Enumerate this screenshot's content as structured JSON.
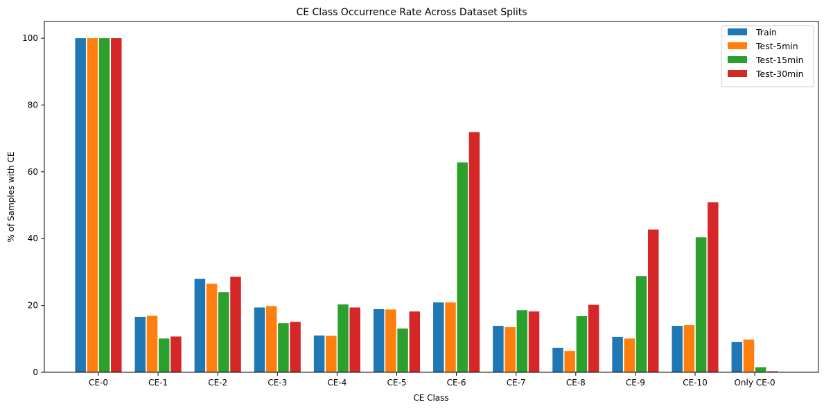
{
  "chart_data": {
    "type": "bar",
    "title": "CE Class Occurrence Rate Across Dataset Splits",
    "xlabel": "CE Class",
    "ylabel": "% of Samples with CE",
    "ylim": [
      0,
      105
    ],
    "yticks": [
      0,
      20,
      40,
      60,
      80,
      100
    ],
    "grid": false,
    "legend_position": "top-right",
    "categories": [
      "CE-0",
      "CE-1",
      "CE-2",
      "CE-3",
      "CE-4",
      "CE-5",
      "CE-6",
      "CE-7",
      "CE-8",
      "CE-9",
      "CE-10",
      "Only CE-0"
    ],
    "series": [
      {
        "name": "Train",
        "color": "#1f77b4",
        "values": [
          100,
          16.6,
          28.0,
          19.4,
          11.0,
          18.9,
          20.9,
          13.9,
          7.3,
          10.6,
          13.9,
          9.1
        ]
      },
      {
        "name": "Test-5min",
        "color": "#ff7f0e",
        "values": [
          100,
          16.9,
          26.5,
          19.8,
          10.9,
          18.8,
          20.9,
          13.5,
          6.4,
          10.1,
          14.1,
          9.8
        ]
      },
      {
        "name": "Test-15min",
        "color": "#2ca02c",
        "values": [
          100,
          10.1,
          24.0,
          14.7,
          20.3,
          13.1,
          62.8,
          18.6,
          16.8,
          28.8,
          40.4,
          1.5
        ]
      },
      {
        "name": "Test-30min",
        "color": "#d62728",
        "values": [
          100,
          10.7,
          28.6,
          15.1,
          19.4,
          18.2,
          71.9,
          18.2,
          20.2,
          42.7,
          50.9,
          0.3
        ]
      }
    ]
  }
}
